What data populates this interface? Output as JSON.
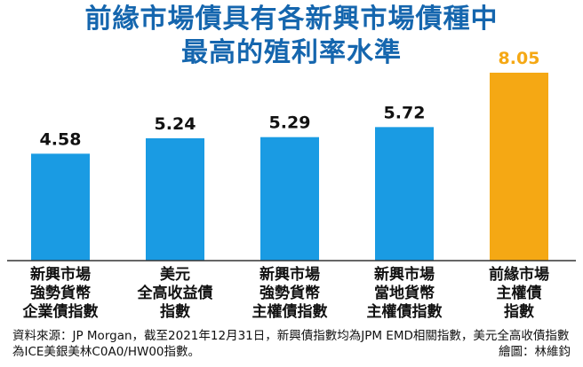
{
  "title_lines": [
    "前緣市場債具有各新興市場債種中",
    "最高的殖利率水準"
  ],
  "chart_data": {
    "type": "bar",
    "title": "前緣市場債具有各新興市場債種中最高的殖利率水準",
    "categories": [
      [
        "新興市場",
        "強勢貨幣",
        "企業債指數"
      ],
      [
        "美元",
        "全高收益債",
        "指數"
      ],
      [
        "新興市場",
        "強勢貨幣",
        "主權債指數"
      ],
      [
        "新興市場",
        "當地貨幣",
        "主權債指數"
      ],
      [
        "前緣市場",
        "主權債",
        "指數"
      ]
    ],
    "values": [
      4.58,
      5.24,
      5.29,
      5.72,
      8.05
    ],
    "value_labels": [
      "4.58",
      "5.24",
      "5.29",
      "5.72",
      "8.05"
    ],
    "bar_colors": [
      "#1a9be3",
      "#1a9be3",
      "#1a9be3",
      "#1a9be3",
      "#f5a814"
    ],
    "label_colors": [
      "#111111",
      "#111111",
      "#111111",
      "#111111",
      "#f5a814"
    ],
    "ylim": [
      0,
      8.05
    ],
    "xlabel": "",
    "ylabel": "",
    "grid": false
  },
  "colors": {
    "title": "#1566ae",
    "bar": "#1a9be3",
    "highlight": "#f5a814",
    "axis": "#333333"
  },
  "source_note": "資料來源：JP Morgan，截至2021年12月31日，新興債指數均為JPM EMD相關指數，美元全高收債指數為ICE美銀美林C0A0/HW00指數。",
  "credit": "繪圖：林維鈞"
}
